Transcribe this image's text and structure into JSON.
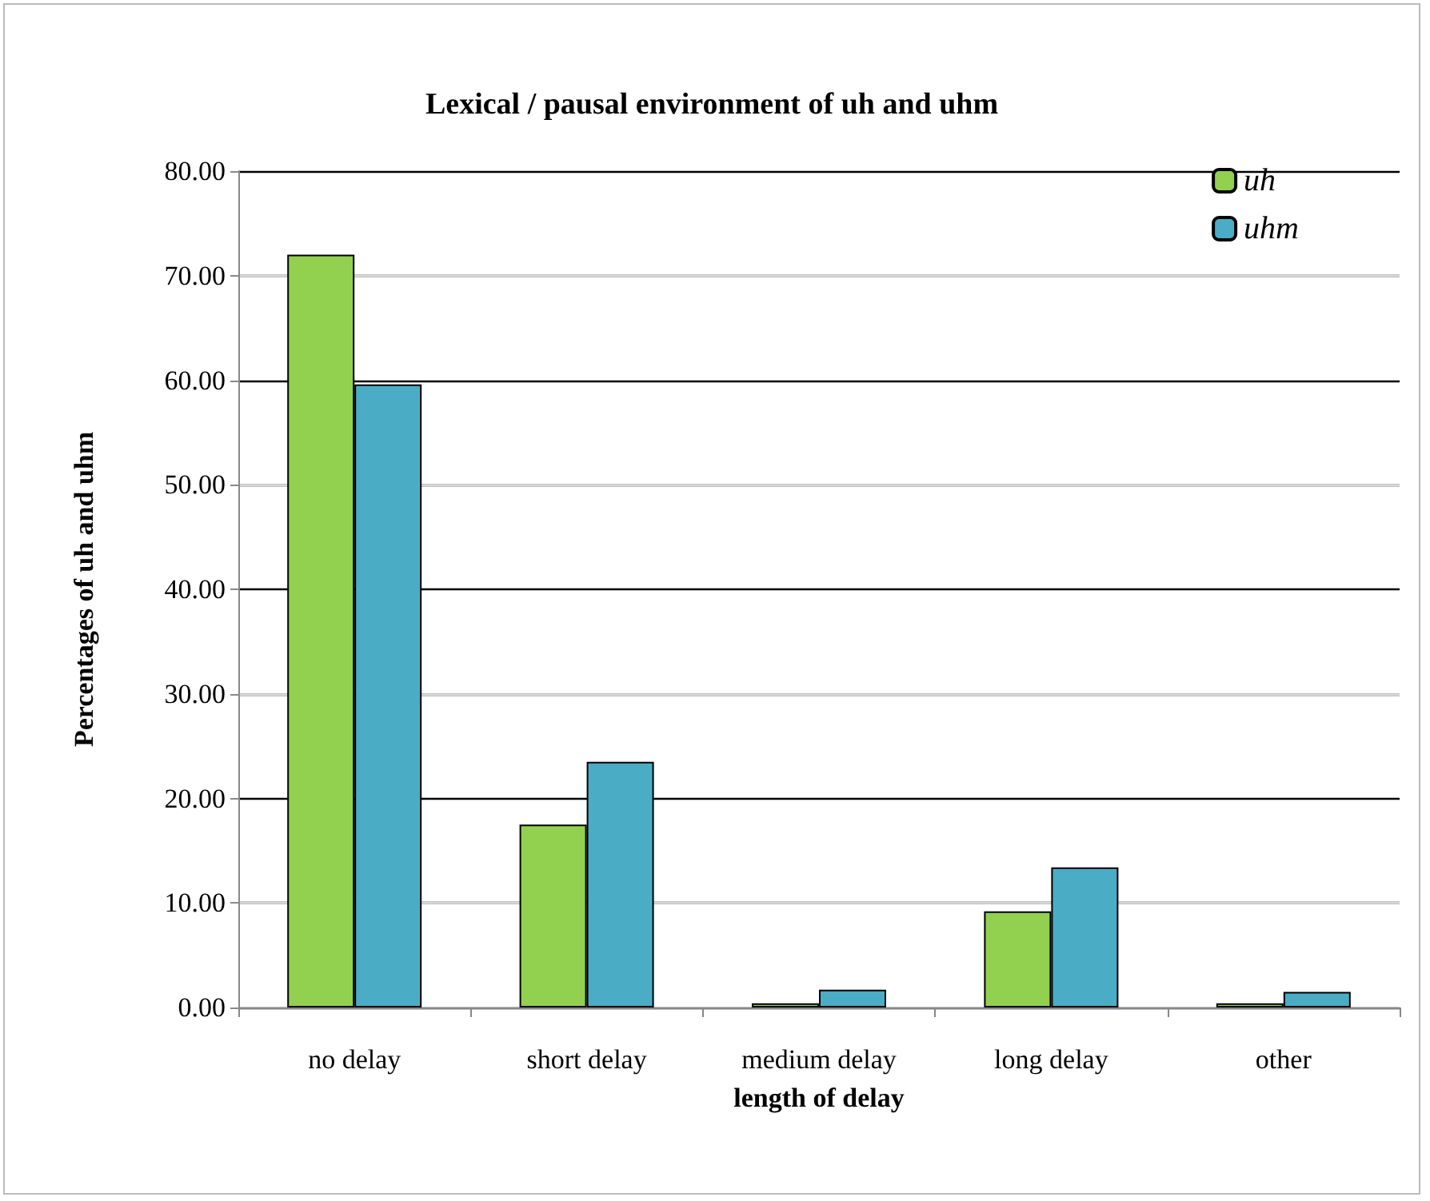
{
  "chart_data": {
    "type": "bar",
    "title": "Lexical / pausal environment of uh and uhm",
    "xlabel": "length of delay",
    "ylabel": "Percentages of uh and uhm",
    "categories": [
      "no delay",
      "short delay",
      "medium delay",
      "long delay",
      "other"
    ],
    "series": [
      {
        "name": "uh",
        "color": "#92d050",
        "values": [
          72.0,
          17.5,
          0.4,
          9.2,
          0.4
        ]
      },
      {
        "name": "uhm",
        "color": "#4bacc6",
        "values": [
          59.6,
          23.5,
          1.7,
          13.4,
          1.5
        ]
      }
    ],
    "ylim": [
      0,
      80
    ],
    "yticks": [
      {
        "value": 0,
        "label": "0.00"
      },
      {
        "value": 10,
        "label": "10.00"
      },
      {
        "value": 20,
        "label": "20.00"
      },
      {
        "value": 30,
        "label": "30.00"
      },
      {
        "value": 40,
        "label": "40.00"
      },
      {
        "value": 50,
        "label": "50.00"
      },
      {
        "value": 60,
        "label": "60.00"
      },
      {
        "value": 70,
        "label": "70.00"
      },
      {
        "value": 80,
        "label": "80.00"
      }
    ],
    "grid": "y",
    "legend": "top right"
  }
}
